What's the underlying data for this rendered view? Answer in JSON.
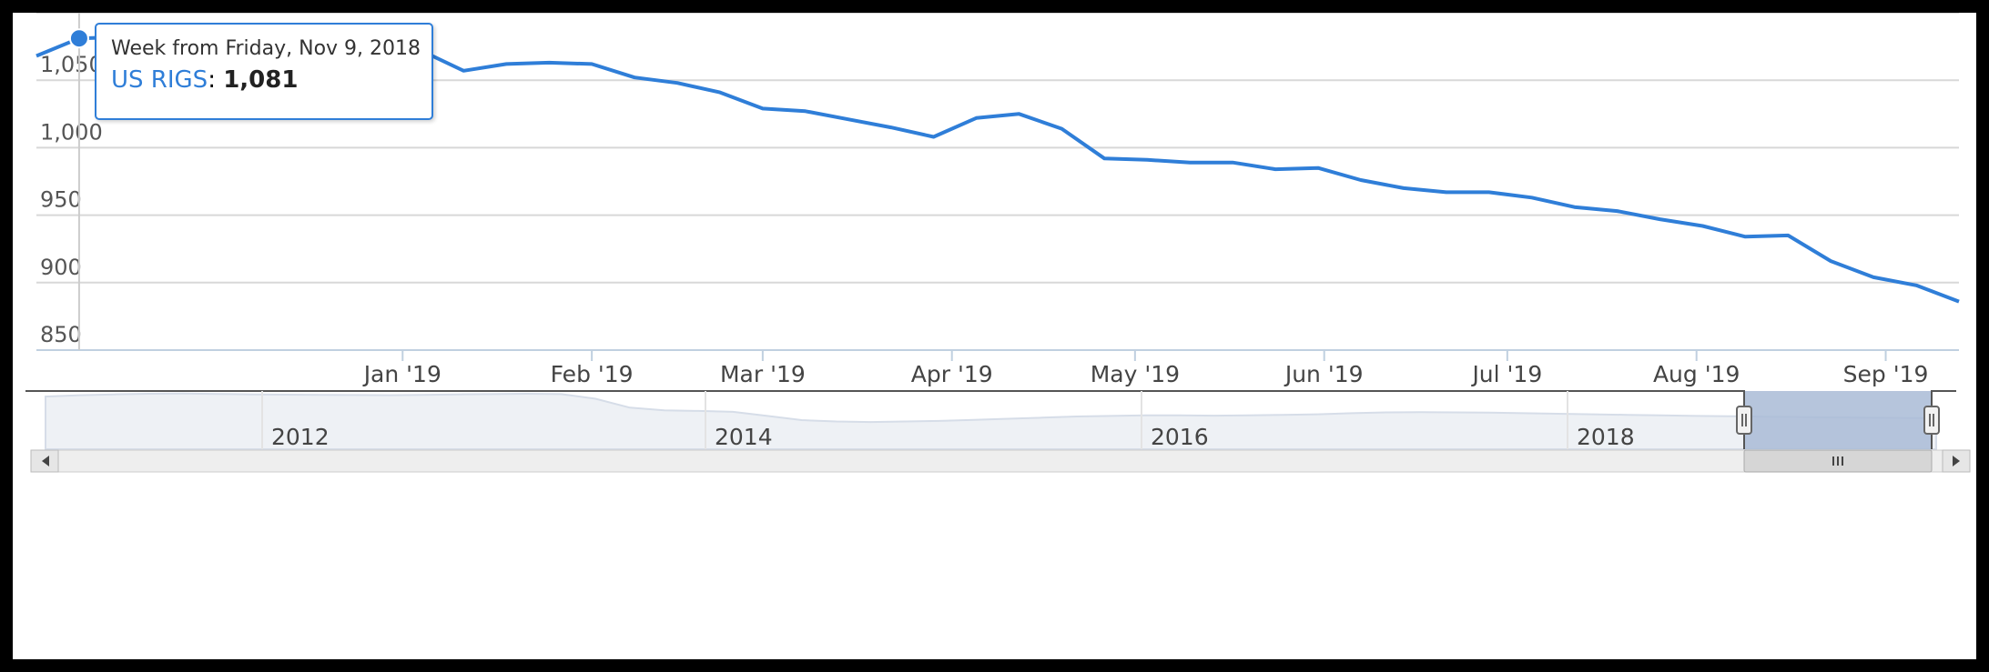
{
  "tooltip": {
    "title": "Week from Friday, Nov 9, 2018",
    "series": "US RIGS",
    "separator": ": ",
    "value": "1,081"
  },
  "colors": {
    "line": "#2f7ed8",
    "navigator_fill": "#eef1f5",
    "navigator_selected": "#a9bbd6"
  },
  "chart_data": {
    "type": "line",
    "series": [
      {
        "name": "US RIGS",
        "x": [
          "2018-11-02",
          "2018-11-09",
          "2018-11-16",
          "2018-11-23",
          "2018-11-30",
          "2018-12-07",
          "2018-12-14",
          "2018-12-21",
          "2018-12-28",
          "2019-01-04",
          "2019-01-11",
          "2019-01-18",
          "2019-01-25",
          "2019-02-01",
          "2019-02-08",
          "2019-02-15",
          "2019-02-22",
          "2019-03-01",
          "2019-03-08",
          "2019-03-15",
          "2019-03-22",
          "2019-03-29",
          "2019-04-05",
          "2019-04-12",
          "2019-04-19",
          "2019-04-26",
          "2019-05-03",
          "2019-05-10",
          "2019-05-17",
          "2019-05-24",
          "2019-05-31",
          "2019-06-07",
          "2019-06-14",
          "2019-06-21",
          "2019-06-28",
          "2019-07-05",
          "2019-07-12",
          "2019-07-19",
          "2019-07-26",
          "2019-08-02",
          "2019-08-09",
          "2019-08-16",
          "2019-08-23",
          "2019-08-30",
          "2019-09-06",
          "2019-09-13"
        ],
        "values": [
          1068,
          1081,
          1082,
          1082,
          1083,
          1082,
          1084,
          1083,
          1080,
          1072,
          1057,
          1062,
          1063,
          1062,
          1052,
          1048,
          1041,
          1029,
          1027,
          1021,
          1015,
          1008,
          1022,
          1025,
          1014,
          992,
          991,
          989,
          989,
          984,
          985,
          976,
          970,
          967,
          967,
          963,
          956,
          953,
          947,
          942,
          934,
          935,
          916,
          904,
          898,
          886
        ]
      }
    ],
    "x_ticks": [
      "Jan '19",
      "Feb '19",
      "Mar '19",
      "Apr '19",
      "May '19",
      "Jun '19",
      "Jul '19",
      "Aug '19",
      "Sep '19"
    ],
    "y_ticks": [
      "850",
      "900",
      "950",
      "1,000",
      "1,050"
    ],
    "ylim": [
      850,
      1100
    ],
    "grid": true,
    "navigator": {
      "labels": [
        "2012",
        "2014",
        "2016",
        "2018"
      ],
      "selected_range": [
        "2018-11-02",
        "2019-09-13"
      ],
      "overview_values": [
        1900,
        1950,
        1980,
        2000,
        2010,
        1995,
        1980,
        1970,
        1960,
        1955,
        1950,
        1960,
        1980,
        1990,
        2000,
        1990,
        1820,
        1500,
        1400,
        1380,
        1350,
        1200,
        1050,
        1000,
        980,
        1000,
        1020,
        1060,
        1100,
        1140,
        1180,
        1200,
        1220,
        1220,
        1210,
        1220,
        1240,
        1260,
        1300,
        1330,
        1340,
        1330,
        1320,
        1300,
        1280,
        1260,
        1240,
        1220,
        1200,
        1190,
        1170,
        1160,
        1150,
        1140,
        1130,
        1120
      ]
    }
  }
}
